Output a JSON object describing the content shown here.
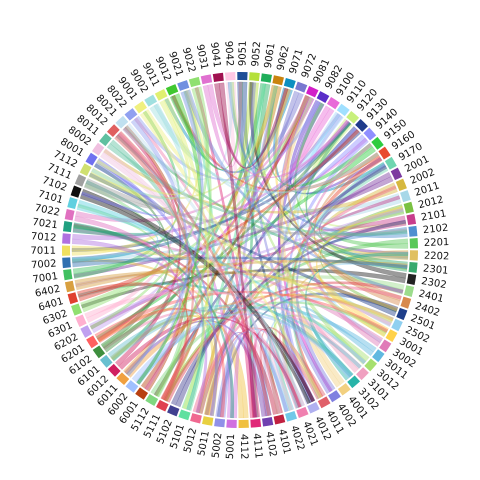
{
  "chart_data": {
    "type": "chord",
    "title": "",
    "sectors": [
      {
        "label": "9042",
        "color": "#ffc8e4"
      },
      {
        "label": "9051",
        "color": "#1f4e96"
      },
      {
        "label": "9052",
        "color": "#b5e03a"
      },
      {
        "label": "9061",
        "color": "#1fae5a"
      },
      {
        "label": "9062",
        "color": "#c9830e"
      },
      {
        "label": "9071",
        "color": "#0c8fc0"
      },
      {
        "label": "9072",
        "color": "#7878d0"
      },
      {
        "label": "9081",
        "color": "#d21ec8"
      },
      {
        "label": "9082",
        "color": "#5a2ec8"
      },
      {
        "label": "9100",
        "color": "#e86ad8"
      },
      {
        "label": "9110",
        "color": "#a0e0ff"
      },
      {
        "label": "9120",
        "color": "#c8f07c"
      },
      {
        "label": "9130",
        "color": "#1e3a8c"
      },
      {
        "label": "9140",
        "color": "#8f8fff"
      },
      {
        "label": "9150",
        "color": "#2ecc40"
      },
      {
        "label": "9160",
        "color": "#e84a2e"
      },
      {
        "label": "9170",
        "color": "#6fd6b0"
      },
      {
        "label": "2001",
        "color": "#7c3aa0"
      },
      {
        "label": "2002",
        "color": "#d6b83e"
      },
      {
        "label": "2011",
        "color": "#a8d8e8"
      },
      {
        "label": "2012",
        "color": "#7ac142"
      },
      {
        "label": "2101",
        "color": "#c83e8c"
      },
      {
        "label": "2102",
        "color": "#4e8fd0"
      },
      {
        "label": "2201",
        "color": "#58c858"
      },
      {
        "label": "2202",
        "color": "#e0c060"
      },
      {
        "label": "2301",
        "color": "#3aaa6e"
      },
      {
        "label": "2302",
        "color": "#222222"
      },
      {
        "label": "2401",
        "color": "#9cdc8c"
      },
      {
        "label": "2402",
        "color": "#d88a4e"
      },
      {
        "label": "2501",
        "color": "#1f3f8a"
      },
      {
        "label": "2502",
        "color": "#90d0f0"
      },
      {
        "label": "3001",
        "color": "#ffd24a"
      },
      {
        "label": "3002",
        "color": "#e07ab8"
      },
      {
        "label": "3011",
        "color": "#60b8e0"
      },
      {
        "label": "3012",
        "color": "#a6e070"
      },
      {
        "label": "3101",
        "color": "#f0a0c0"
      },
      {
        "label": "3102",
        "color": "#28b4a8"
      },
      {
        "label": "4001",
        "color": "#f2d080"
      },
      {
        "label": "4002",
        "color": "#8080e0"
      },
      {
        "label": "4011",
        "color": "#e0606a"
      },
      {
        "label": "4012",
        "color": "#b0b0f0"
      },
      {
        "label": "4021",
        "color": "#f080b0"
      },
      {
        "label": "4022",
        "color": "#70c8e8"
      },
      {
        "label": "4101",
        "color": "#c02040"
      },
      {
        "label": "4102",
        "color": "#7040b0"
      },
      {
        "label": "4111",
        "color": "#e02878"
      },
      {
        "label": "4112",
        "color": "#f0c040"
      },
      {
        "label": "5001",
        "color": "#d070e0"
      },
      {
        "label": "5002",
        "color": "#9090e8"
      },
      {
        "label": "5011",
        "color": "#e8d040"
      },
      {
        "label": "5012",
        "color": "#f06890"
      },
      {
        "label": "5101",
        "color": "#60e0a0"
      },
      {
        "label": "5102",
        "color": "#404090"
      },
      {
        "label": "5111",
        "color": "#e04050"
      },
      {
        "label": "5112",
        "color": "#80d880"
      },
      {
        "label": "6001",
        "color": "#b84010"
      },
      {
        "label": "6002",
        "color": "#a0c0ff"
      },
      {
        "label": "6011",
        "color": "#f0a040"
      },
      {
        "label": "6012",
        "color": "#d02060"
      },
      {
        "label": "6101",
        "color": "#6ac0d0"
      },
      {
        "label": "6102",
        "color": "#3e8f3e"
      },
      {
        "label": "6201",
        "color": "#ff6060"
      },
      {
        "label": "6202",
        "color": "#c0a0f0"
      },
      {
        "label": "6301",
        "color": "#ffb0d0"
      },
      {
        "label": "6302",
        "color": "#90e070"
      },
      {
        "label": "6401",
        "color": "#e04030"
      },
      {
        "label": "6402",
        "color": "#d8a040"
      },
      {
        "label": "7001",
        "color": "#40c060"
      },
      {
        "label": "7002",
        "color": "#3070b0"
      },
      {
        "label": "7011",
        "color": "#f0e060"
      },
      {
        "label": "7012",
        "color": "#b070e0"
      },
      {
        "label": "7021",
        "color": "#20a080"
      },
      {
        "label": "7022",
        "color": "#e070c0"
      },
      {
        "label": "7101",
        "color": "#60d0e0"
      },
      {
        "label": "7102",
        "color": "#101010"
      },
      {
        "label": "7111",
        "color": "#a0a0a0"
      },
      {
        "label": "7112",
        "color": "#d0e070"
      },
      {
        "label": "8001",
        "color": "#7070f0"
      },
      {
        "label": "8002",
        "color": "#f0c0e0"
      },
      {
        "label": "8011",
        "color": "#60c0a0"
      },
      {
        "label": "8012",
        "color": "#e06060"
      },
      {
        "label": "8021",
        "color": "#c0e0f0"
      },
      {
        "label": "8022",
        "color": "#90a0f0"
      },
      {
        "label": "9001",
        "color": "#f0f080"
      },
      {
        "label": "9002",
        "color": "#a0e0e0"
      },
      {
        "label": "9011",
        "color": "#e0f070"
      },
      {
        "label": "9012",
        "color": "#40c830"
      },
      {
        "label": "9021",
        "color": "#7090e0"
      },
      {
        "label": "9022",
        "color": "#90e070"
      },
      {
        "label": "9031",
        "color": "#e070d0"
      },
      {
        "label": "9041",
        "color": "#a01050"
      }
    ]
  }
}
